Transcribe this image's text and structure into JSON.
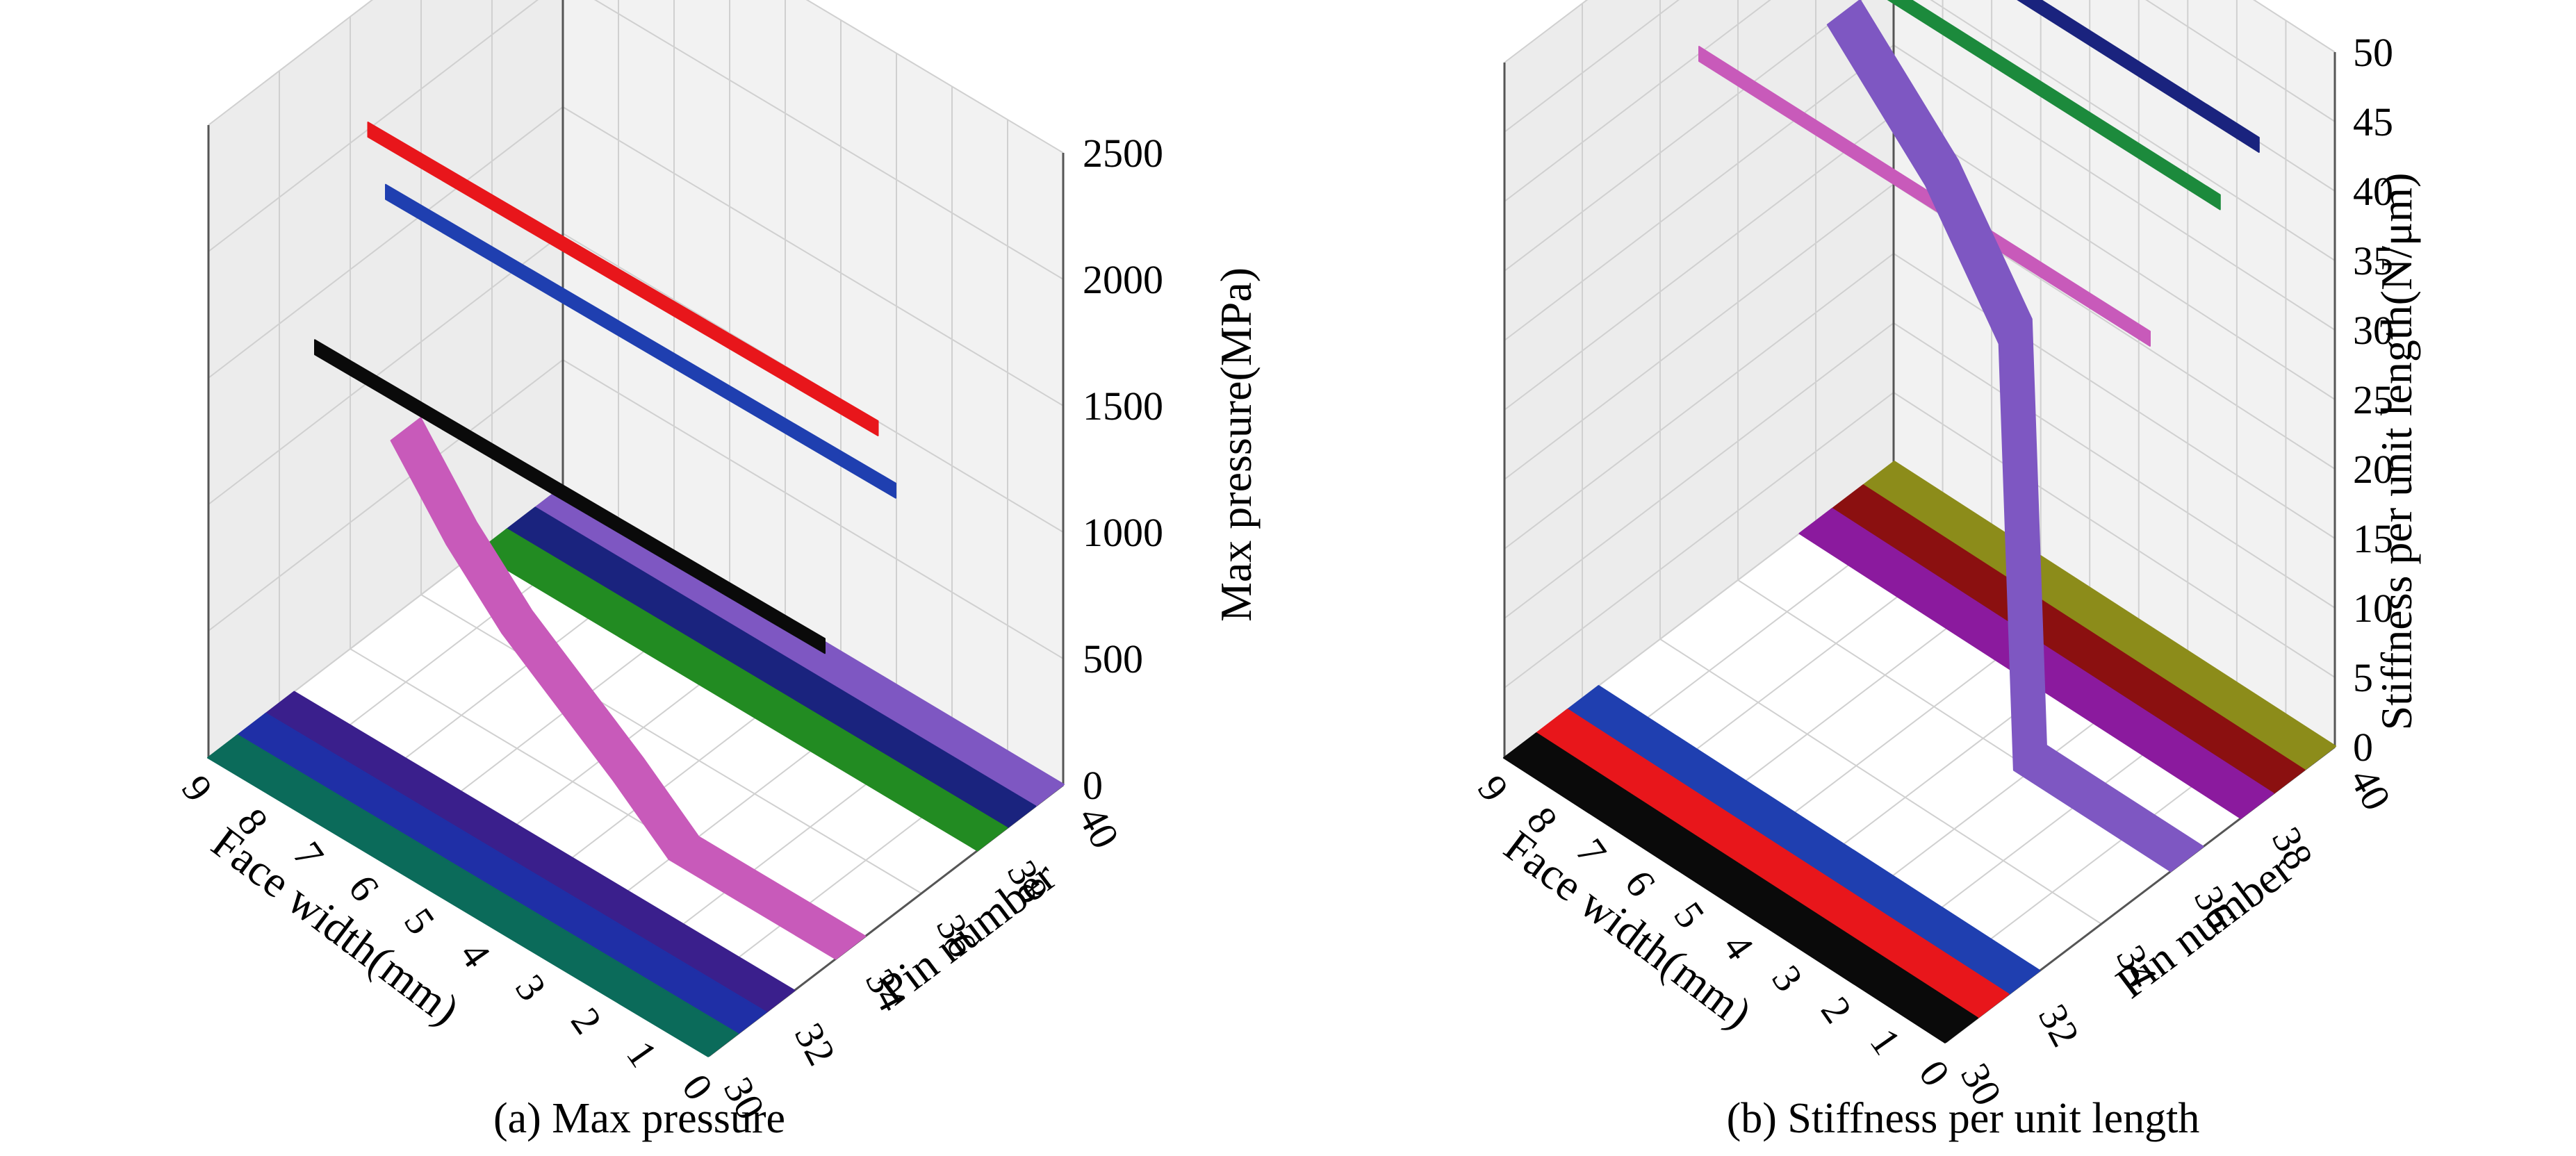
{
  "chart_data": [
    {
      "type": "3d-ribbon",
      "caption": "(a) Max pressure",
      "xlabel": "Face width(mm)",
      "ylabel": "Pin number",
      "zlabel": "Max pressure(MPa)",
      "xlim": [
        0,
        9
      ],
      "ylim": [
        30,
        40
      ],
      "zlim": [
        0,
        2500
      ],
      "x_ticks": [
        "0",
        "1",
        "2",
        "3",
        "4",
        "5",
        "6",
        "7",
        "8",
        "9"
      ],
      "y_ticks": [
        "30",
        "32",
        "34",
        "36",
        "38",
        "40"
      ],
      "z_ticks": [
        "0",
        "500",
        "1000",
        "1500",
        "2000",
        "2500"
      ],
      "grid": true,
      "series": [
        {
          "pin": 30.4,
          "color": "#0b6b5a",
          "points": [
            [
              0,
              0
            ],
            [
              9,
              0
            ]
          ]
        },
        {
          "pin": 31.2,
          "color": "#1f2fa6",
          "points": [
            [
              0,
              0
            ],
            [
              9,
              0
            ]
          ]
        },
        {
          "pin": 32.0,
          "color": "#3a1f8c",
          "points": [
            [
              0,
              0
            ],
            [
              9,
              0
            ]
          ]
        },
        {
          "pin": 34.0,
          "color": "#c85aba",
          "points": [
            [
              0,
              0
            ],
            [
              3,
              0
            ],
            [
              4,
              180
            ],
            [
              6,
              500
            ],
            [
              7,
              720
            ],
            [
              8,
              1000
            ]
          ]
        },
        {
          "pin": 38.0,
          "color": "#228b22",
          "points": [
            [
              0,
              0
            ],
            [
              9,
              0
            ]
          ]
        },
        {
          "pin": 38.8,
          "color": "#1a237e",
          "points": [
            [
              0,
              0
            ],
            [
              9,
              0
            ]
          ]
        },
        {
          "pin": 39.6,
          "color": "#7e57c2",
          "points": [
            [
              0,
              0
            ],
            [
              9,
              0
            ]
          ]
        },
        {
          "pin": 33.0,
          "color": "#0a0a0a",
          "points": [
            [
              0,
              1300
            ],
            [
              9,
              1300
            ]
          ]
        },
        {
          "pin": 35.0,
          "color": "#1f3fb0",
          "points": [
            [
              0,
              1700
            ],
            [
              9,
              1700
            ]
          ]
        },
        {
          "pin": 34.5,
          "color": "#e8161b",
          "points": [
            [
              0,
              2000
            ],
            [
              9,
              2000
            ]
          ]
        }
      ]
    },
    {
      "type": "3d-ribbon",
      "caption": "(b) Stiffness per unit length",
      "xlabel": "Face width(mm)",
      "ylabel": "Pin number",
      "zlabel": "Stiffness per unit length(N/μm)",
      "xlim": [
        0,
        9
      ],
      "ylim": [
        30,
        40
      ],
      "zlim": [
        0,
        50
      ],
      "x_ticks": [
        "0",
        "1",
        "2",
        "3",
        "4",
        "5",
        "6",
        "7",
        "8",
        "9"
      ],
      "y_ticks": [
        "30",
        "32",
        "34",
        "36",
        "38",
        "40"
      ],
      "z_ticks": [
        "0",
        "5",
        "10",
        "15",
        "20",
        "25",
        "30",
        "35",
        "40",
        "45",
        "50"
      ],
      "grid": true,
      "series": [
        {
          "pin": 30.4,
          "color": "#0a0a0a",
          "points": [
            [
              0,
              0
            ],
            [
              9,
              0
            ]
          ]
        },
        {
          "pin": 31.2,
          "color": "#e8161b",
          "points": [
            [
              0,
              0
            ],
            [
              9,
              0
            ]
          ]
        },
        {
          "pin": 32.0,
          "color": "#1f3fb0",
          "points": [
            [
              0,
              0
            ],
            [
              9,
              0
            ]
          ]
        },
        {
          "pin": 36.2,
          "color": "#7e57c2",
          "points": [
            [
              0,
              0
            ],
            [
              3.2,
              0
            ],
            [
              3.5,
              30
            ],
            [
              5,
              38
            ],
            [
              7,
              45
            ]
          ]
        },
        {
          "pin": 38.0,
          "color": "#8b1a9e",
          "points": [
            [
              0,
              0
            ],
            [
              9,
              0
            ]
          ]
        },
        {
          "pin": 38.8,
          "color": "#8b1010",
          "points": [
            [
              0,
              0
            ],
            [
              9,
              0
            ]
          ]
        },
        {
          "pin": 39.6,
          "color": "#8c8c1a",
          "points": [
            [
              0,
              0
            ],
            [
              9,
              0
            ]
          ]
        },
        {
          "pin": 35.0,
          "color": "#c85aba",
          "points": [
            [
              0,
              40
            ],
            [
              9,
              40
            ]
          ]
        },
        {
          "pin": 36.8,
          "color": "#1c8a3c",
          "points": [
            [
              0,
              46
            ],
            [
              9,
              46
            ]
          ]
        },
        {
          "pin": 37.8,
          "color": "#1a237e",
          "points": [
            [
              0,
              48
            ],
            [
              9,
              48
            ]
          ]
        }
      ]
    }
  ]
}
